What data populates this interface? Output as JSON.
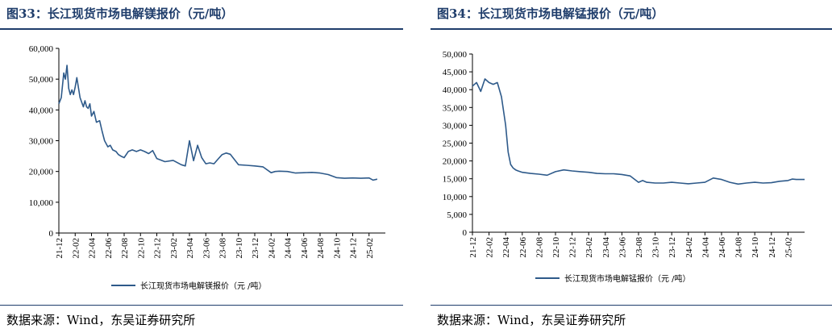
{
  "left": {
    "title": "图33：长江现货市场电解镁报价（元/吨）",
    "source": "数据来源：Wind，东吴证券研究所",
    "legend": "长江现货市场电解镁报价（元 /吨）"
  },
  "right": {
    "title": "图34：长江现货市场电解锰报价（元/吨）",
    "source": "数据来源：Wind，东吴证券研究所",
    "legend": "长江现货市场电解锰报价（元 /吨）"
  },
  "colors": {
    "line": "#2e5a8a",
    "title": "#1f3d6b"
  },
  "chart_data": [
    {
      "type": "line",
      "title": "长江现货市场电解镁报价（元/吨）",
      "ylim": [
        0,
        60000
      ],
      "yticks": [
        "0",
        "10,000",
        "20,000",
        "30,000",
        "40,000",
        "50,000",
        "60,000"
      ],
      "yvalues": [
        0,
        10000,
        20000,
        30000,
        40000,
        50000,
        60000
      ],
      "xticks": [
        "21-12",
        "22-02",
        "22-04",
        "22-06",
        "22-08",
        "22-10",
        "22-12",
        "23-02",
        "23-04",
        "23-06",
        "23-08",
        "23-10",
        "23-12",
        "24-02",
        "24-04",
        "24-06",
        "24-08",
        "24-10",
        "24-12",
        "25-02"
      ],
      "xlim": [
        0,
        40
      ],
      "series": [
        {
          "name": "长江现货市场电解镁报价（元 /吨）",
          "x": [
            0,
            0.3,
            0.6,
            0.8,
            1.0,
            1.2,
            1.4,
            1.6,
            1.8,
            2.0,
            2.2,
            2.6,
            3.0,
            3.2,
            3.4,
            3.6,
            3.8,
            4.0,
            4.3,
            4.6,
            5.0,
            5.3,
            5.6,
            6.0,
            6.3,
            6.6,
            7.0,
            7.3,
            7.6,
            8.0,
            8.5,
            9.0,
            9.5,
            10.0,
            10.5,
            11.0,
            11.5,
            12.0,
            13.0,
            14.0,
            15.0,
            15.5,
            16.0,
            16.5,
            17.0,
            17.5,
            18.0,
            18.5,
            19.0,
            19.5,
            20.0,
            20.5,
            21.0,
            22.0,
            23.0,
            24.0,
            25.0,
            26.0,
            26.5,
            27.0,
            28.0,
            29.0,
            30.0,
            31.0,
            32.0,
            33.0,
            34.0,
            35.0,
            36.0,
            37.0,
            38.0,
            38.5,
            39.0
          ],
          "values": [
            42000,
            44000,
            52000,
            50000,
            54500,
            47000,
            45000,
            46500,
            45000,
            47500,
            50500,
            44000,
            41000,
            43000,
            41000,
            40500,
            42000,
            38000,
            39500,
            36000,
            36500,
            33000,
            30000,
            28000,
            28500,
            27000,
            26500,
            25500,
            25000,
            24500,
            26500,
            27000,
            26500,
            27000,
            26500,
            25800,
            26800,
            24200,
            23200,
            23600,
            22200,
            21800,
            30000,
            23500,
            28500,
            24500,
            22500,
            22800,
            22500,
            24000,
            25500,
            26000,
            25600,
            22200,
            22000,
            21800,
            21500,
            19600,
            20000,
            20100,
            20000,
            19500,
            19600,
            19700,
            19500,
            19000,
            18000,
            17800,
            17900,
            17800,
            17900,
            17200,
            17500
          ]
        }
      ]
    },
    {
      "type": "line",
      "title": "长江现货市场电解锰报价（元/吨）",
      "ylim": [
        0,
        50000
      ],
      "yticks": [
        "0",
        "5,000",
        "10,000",
        "15,000",
        "20,000",
        "25,000",
        "30,000",
        "35,000",
        "40,000",
        "45,000",
        "50,000"
      ],
      "yvalues": [
        0,
        5000,
        10000,
        15000,
        20000,
        25000,
        30000,
        35000,
        40000,
        45000,
        50000
      ],
      "xticks": [
        "21-12",
        "22-02",
        "22-04",
        "22-06",
        "22-08",
        "22-10",
        "22-12",
        "23-02",
        "23-04",
        "23-06",
        "23-08",
        "23-10",
        "23-12",
        "24-02",
        "24-04",
        "24-06",
        "24-08",
        "24-10",
        "24-12",
        "25-02"
      ],
      "xlim": [
        0,
        40
      ],
      "series": [
        {
          "name": "长江现货市场电解锰报价（元 /吨）",
          "x": [
            0,
            0.5,
            1.0,
            1.5,
            2.0,
            2.5,
            3.0,
            3.5,
            4.0,
            4.3,
            4.6,
            4.9,
            5.2,
            5.5,
            6.0,
            7.0,
            8.0,
            9.0,
            10.0,
            11.0,
            12.0,
            13.0,
            14.0,
            15.0,
            16.0,
            17.0,
            18.0,
            19.0,
            20.0,
            20.5,
            21.0,
            22.0,
            23.0,
            24.0,
            25.0,
            26.0,
            27.0,
            28.0,
            29.0,
            30.0,
            31.0,
            32.0,
            33.0,
            34.0,
            35.0,
            36.0,
            37.0,
            38.0,
            38.5,
            39.0,
            40.0
          ],
          "values": [
            41000,
            42000,
            39500,
            43000,
            42000,
            41500,
            42000,
            38000,
            30000,
            22500,
            19000,
            18000,
            17500,
            17200,
            16800,
            16500,
            16300,
            16000,
            17000,
            17500,
            17200,
            17000,
            16800,
            16500,
            16400,
            16400,
            16200,
            15800,
            14000,
            14500,
            14000,
            13800,
            13800,
            14000,
            13800,
            13600,
            13800,
            14000,
            15200,
            14800,
            14000,
            13500,
            13800,
            14000,
            13800,
            13900,
            14300,
            14500,
            14900,
            14800,
            14800
          ]
        }
      ]
    }
  ]
}
